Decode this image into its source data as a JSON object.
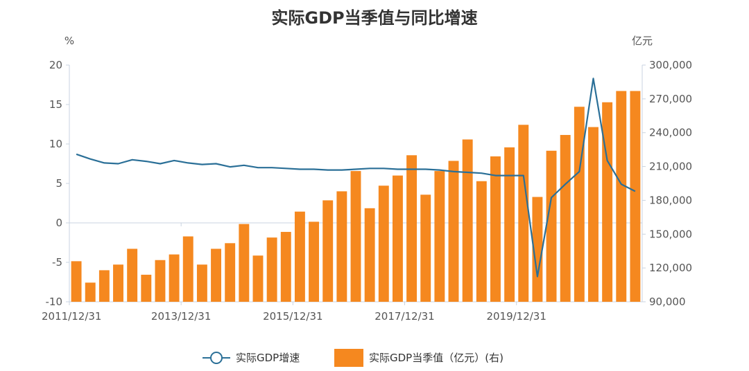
{
  "chart_data": {
    "type": "bar+line",
    "title": "实际GDP当季值与同比增速",
    "left_axis": {
      "unit": "%",
      "ylim": [
        -10,
        20
      ],
      "ticks": [
        "20",
        "15",
        "10",
        "5",
        "0",
        "-5",
        "-10"
      ],
      "tick_values": [
        20,
        15,
        10,
        5,
        0,
        -5,
        -10
      ]
    },
    "right_axis": {
      "unit": "亿元",
      "ylim": [
        90000,
        300000
      ],
      "ticks": [
        "300,000",
        "270,000",
        "240,000",
        "210,000",
        "180,000",
        "150,000",
        "120,000",
        "90,000"
      ],
      "tick_values": [
        300000,
        270000,
        240000,
        210000,
        180000,
        150000,
        120000,
        90000
      ]
    },
    "x_tick_labels": [
      {
        "label": "2011/12/31",
        "index": 0
      },
      {
        "label": "2013/12/31",
        "index": 8
      },
      {
        "label": "2015/12/31",
        "index": 16
      },
      {
        "label": "2017/12/31",
        "index": 24
      },
      {
        "label": "2019/12/31",
        "index": 32
      }
    ],
    "x": [
      "2011/12/31",
      "2012/03/31",
      "2012/06/30",
      "2012/09/30",
      "2012/12/31",
      "2013/03/31",
      "2013/06/30",
      "2013/09/30",
      "2013/12/31",
      "2014/03/31",
      "2014/06/30",
      "2014/09/30",
      "2014/12/31",
      "2015/03/31",
      "2015/06/30",
      "2015/09/30",
      "2015/12/31",
      "2016/03/31",
      "2016/06/30",
      "2016/09/30",
      "2016/12/31",
      "2017/03/31",
      "2017/06/30",
      "2017/09/30",
      "2017/12/31",
      "2018/03/31",
      "2018/06/30",
      "2018/09/30",
      "2018/12/31",
      "2019/03/31",
      "2019/06/30",
      "2019/09/30",
      "2019/12/31",
      "2020/03/31",
      "2020/06/30",
      "2020/09/30",
      "2020/12/31",
      "2021/03/31",
      "2021/06/30",
      "2021/09/30",
      "2021/12/31"
    ],
    "series": [
      {
        "name": "实际GDP增速",
        "kind": "line",
        "axis": "left",
        "color": "#2a6f97",
        "values": [
          8.7,
          8.1,
          7.6,
          7.5,
          8.0,
          7.8,
          7.5,
          7.9,
          7.6,
          7.4,
          7.5,
          7.1,
          7.3,
          7.0,
          7.0,
          6.9,
          6.8,
          6.8,
          6.7,
          6.7,
          6.8,
          6.9,
          6.9,
          6.8,
          6.8,
          6.8,
          6.7,
          6.5,
          6.4,
          6.3,
          6.0,
          6.0,
          6.0,
          -6.8,
          3.2,
          4.9,
          6.5,
          18.3,
          7.9,
          4.9,
          4.0
        ]
      },
      {
        "name": "实际GDP当季值（亿元）(右)",
        "kind": "bar",
        "axis": "right",
        "color": "#f5881f",
        "values": [
          126000,
          107000,
          118000,
          123000,
          137000,
          114000,
          127000,
          132000,
          148000,
          123000,
          137000,
          142000,
          159000,
          131000,
          147000,
          152000,
          170000,
          161000,
          180000,
          188000,
          206000,
          173000,
          193000,
          202000,
          220000,
          185000,
          206000,
          215000,
          234000,
          197000,
          219000,
          227000,
          247000,
          183000,
          224000,
          238000,
          263000,
          245000,
          267000,
          277000,
          277000
        ]
      }
    ],
    "legend_placement": "bottom",
    "grid": false
  }
}
